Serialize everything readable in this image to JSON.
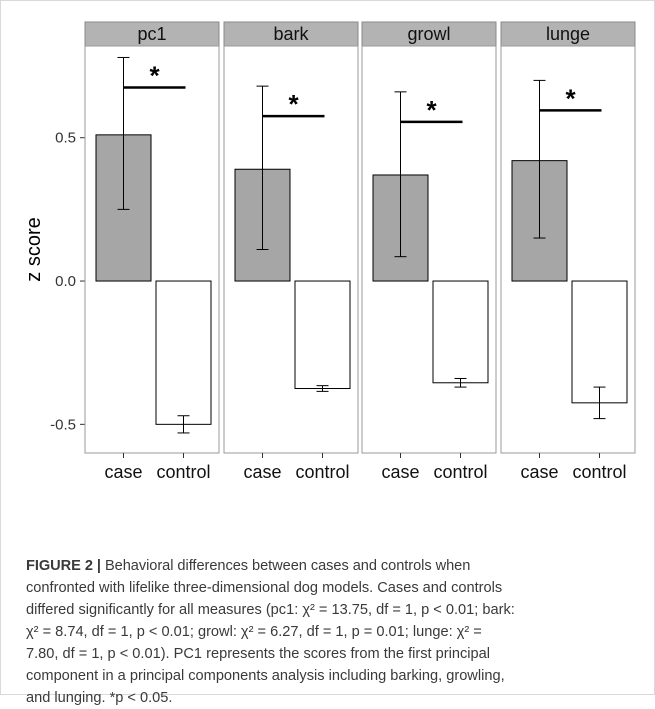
{
  "chart_data": {
    "type": "bar",
    "ylabel": "z score",
    "ylim": [
      -0.6,
      0.82
    ],
    "yticks": [
      -0.5,
      0.0,
      0.5
    ],
    "ytick_labels": [
      "-0.5",
      "0.0",
      "0.5"
    ],
    "categories": [
      "case",
      "control"
    ],
    "colors": {
      "case": "#a6a6a6",
      "control": "#ffffff",
      "strip": "#b3b3b3"
    },
    "significance_marker": "*",
    "panels": [
      {
        "name": "pc1",
        "values": [
          0.51,
          -0.5
        ],
        "errors": [
          [
            0.25,
            0.78
          ],
          [
            -0.53,
            -0.47
          ]
        ]
      },
      {
        "name": "bark",
        "values": [
          0.39,
          -0.375
        ],
        "errors": [
          [
            0.11,
            0.68
          ],
          [
            -0.385,
            -0.365
          ]
        ]
      },
      {
        "name": "growl",
        "values": [
          0.37,
          -0.355
        ],
        "errors": [
          [
            0.085,
            0.66
          ],
          [
            -0.37,
            -0.34
          ]
        ]
      },
      {
        "name": "lunge",
        "values": [
          0.42,
          -0.425
        ],
        "errors": [
          [
            0.15,
            0.7
          ],
          [
            -0.48,
            -0.37
          ]
        ]
      }
    ]
  },
  "caption": {
    "label": "FIGURE 2",
    "bar": "|",
    "lines": [
      " Behavioral differences between cases and controls when",
      "confronted with lifelike three-dimensional dog models. Cases and controls",
      "differed significantly for all measures (pc1: χ² = 13.75, df = 1, p < 0.01; bark:",
      "χ² = 8.74, df = 1, p < 0.01; growl: χ² = 6.27, df = 1, p = 0.01; lunge: χ² =",
      "7.80, df = 1, p < 0.01). PC1 represents the scores from the first principal",
      "component in a principal components analysis including barking, growling,",
      "and lunging. *p < 0.05."
    ]
  }
}
